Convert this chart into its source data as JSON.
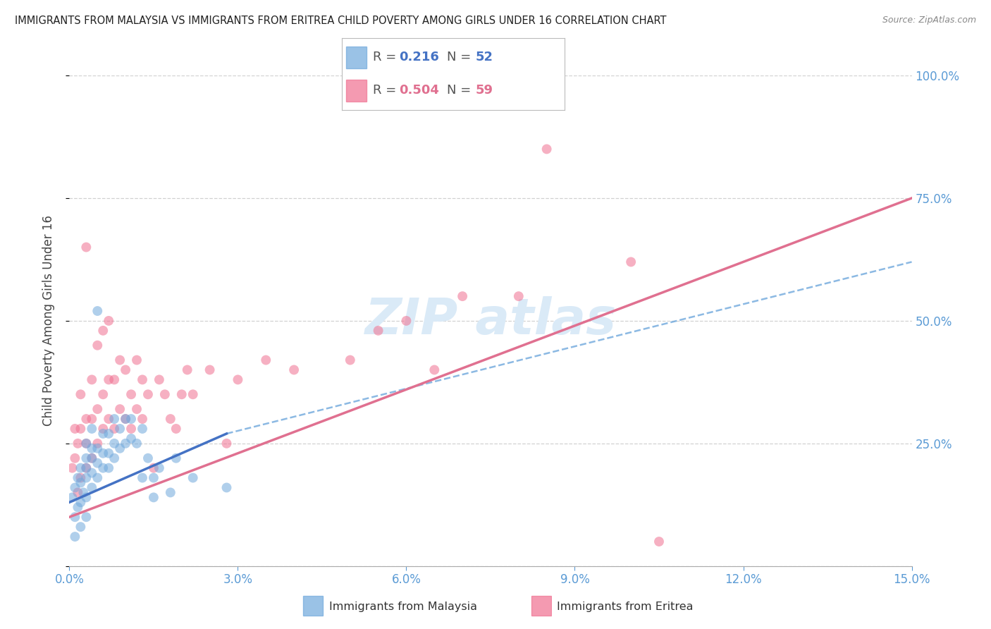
{
  "title": "IMMIGRANTS FROM MALAYSIA VS IMMIGRANTS FROM ERITREA CHILD POVERTY AMONG GIRLS UNDER 16 CORRELATION CHART",
  "source": "Source: ZipAtlas.com",
  "ylabel": "Child Poverty Among Girls Under 16",
  "xlim": [
    0.0,
    0.15
  ],
  "ylim": [
    0.0,
    1.0
  ],
  "malaysia_color": "#6fa8dc",
  "eritrea_color": "#f07090",
  "malaysia_line_color": "#4472c4",
  "eritrea_line_color": "#e07090",
  "dashed_line_color": "#6fa8dc",
  "malaysia_R": 0.216,
  "malaysia_N": 52,
  "eritrea_R": 0.504,
  "eritrea_N": 59,
  "malaysia_scatter_x": [
    0.0005,
    0.001,
    0.001,
    0.001,
    0.0015,
    0.0015,
    0.002,
    0.002,
    0.002,
    0.002,
    0.0025,
    0.003,
    0.003,
    0.003,
    0.003,
    0.003,
    0.003,
    0.004,
    0.004,
    0.004,
    0.004,
    0.004,
    0.005,
    0.005,
    0.005,
    0.005,
    0.006,
    0.006,
    0.006,
    0.007,
    0.007,
    0.007,
    0.008,
    0.008,
    0.008,
    0.009,
    0.009,
    0.01,
    0.01,
    0.011,
    0.011,
    0.012,
    0.013,
    0.013,
    0.014,
    0.015,
    0.015,
    0.016,
    0.018,
    0.019,
    0.022,
    0.028
  ],
  "malaysia_scatter_y": [
    0.14,
    0.1,
    0.16,
    0.06,
    0.12,
    0.18,
    0.13,
    0.17,
    0.2,
    0.08,
    0.15,
    0.14,
    0.18,
    0.2,
    0.22,
    0.25,
    0.1,
    0.16,
    0.19,
    0.22,
    0.24,
    0.28,
    0.18,
    0.21,
    0.24,
    0.52,
    0.2,
    0.23,
    0.27,
    0.2,
    0.23,
    0.27,
    0.22,
    0.25,
    0.3,
    0.24,
    0.28,
    0.25,
    0.3,
    0.26,
    0.3,
    0.25,
    0.28,
    0.18,
    0.22,
    0.18,
    0.14,
    0.2,
    0.15,
    0.22,
    0.18,
    0.16
  ],
  "eritrea_scatter_x": [
    0.0005,
    0.001,
    0.001,
    0.0015,
    0.0015,
    0.002,
    0.002,
    0.002,
    0.003,
    0.003,
    0.003,
    0.003,
    0.004,
    0.004,
    0.004,
    0.005,
    0.005,
    0.005,
    0.006,
    0.006,
    0.006,
    0.007,
    0.007,
    0.007,
    0.008,
    0.008,
    0.009,
    0.009,
    0.01,
    0.01,
    0.011,
    0.011,
    0.012,
    0.012,
    0.013,
    0.013,
    0.014,
    0.015,
    0.016,
    0.017,
    0.018,
    0.019,
    0.02,
    0.021,
    0.022,
    0.025,
    0.028,
    0.03,
    0.035,
    0.04,
    0.05,
    0.055,
    0.06,
    0.065,
    0.07,
    0.08,
    0.085,
    0.1,
    0.105
  ],
  "eritrea_scatter_y": [
    0.2,
    0.22,
    0.28,
    0.15,
    0.25,
    0.18,
    0.28,
    0.35,
    0.2,
    0.25,
    0.3,
    0.65,
    0.22,
    0.3,
    0.38,
    0.25,
    0.32,
    0.45,
    0.28,
    0.35,
    0.48,
    0.3,
    0.38,
    0.5,
    0.28,
    0.38,
    0.32,
    0.42,
    0.3,
    0.4,
    0.28,
    0.35,
    0.32,
    0.42,
    0.3,
    0.38,
    0.35,
    0.2,
    0.38,
    0.35,
    0.3,
    0.28,
    0.35,
    0.4,
    0.35,
    0.4,
    0.25,
    0.38,
    0.42,
    0.4,
    0.42,
    0.48,
    0.5,
    0.4,
    0.55,
    0.55,
    0.85,
    0.62,
    0.05
  ],
  "malaysia_line_x": [
    0.0,
    0.028
  ],
  "malaysia_line_y": [
    0.13,
    0.27
  ],
  "eritrea_line_x": [
    0.0,
    0.15
  ],
  "eritrea_line_y": [
    0.1,
    0.75
  ],
  "dashed_line_x": [
    0.028,
    0.15
  ],
  "dashed_line_y": [
    0.27,
    0.62
  ],
  "background_color": "#ffffff",
  "grid_color": "#cccccc",
  "title_color": "#222222",
  "right_tick_color": "#5b9bd5",
  "watermark_color": "#daeaf7",
  "legend_R_color_malaysia": "#4472c4",
  "legend_R_color_eritrea": "#e07090",
  "legend_N_color_malaysia": "#4472c4",
  "legend_N_color_eritrea": "#e07090"
}
